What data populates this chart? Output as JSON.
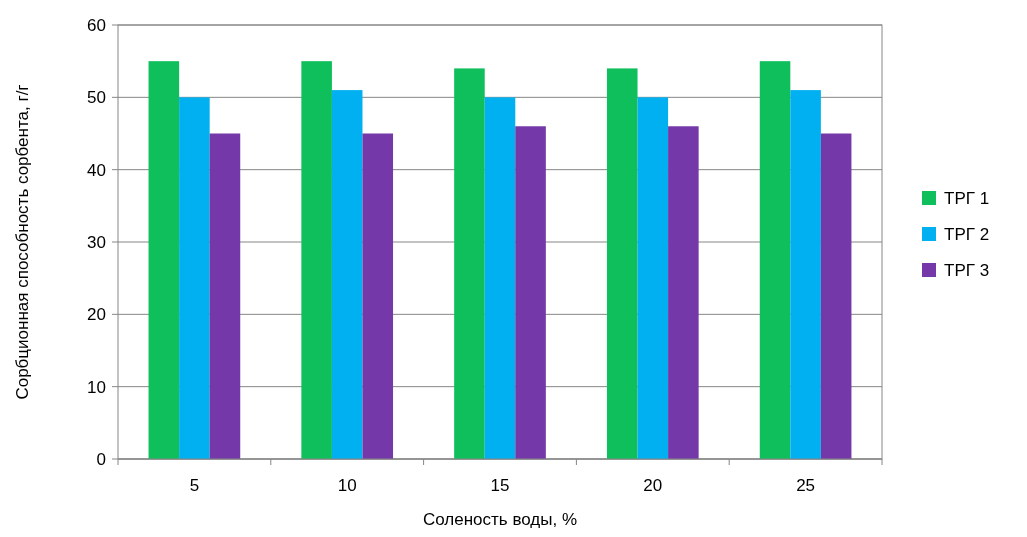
{
  "chart_data": {
    "type": "bar",
    "xlabel": "Соленость воды, %",
    "ylabel": "Сорбционная способность сорбента, г/г",
    "categories": [
      "5",
      "10",
      "15",
      "20",
      "25"
    ],
    "series": [
      {
        "name": "ТРГ 1",
        "color": "#0fbf5b",
        "values": [
          55,
          55,
          54,
          54,
          55
        ]
      },
      {
        "name": "ТРГ 2",
        "color": "#00b0f0",
        "values": [
          50,
          51,
          50,
          50,
          51
        ]
      },
      {
        "name": "ТРГ 3",
        "color": "#7538a8",
        "values": [
          45,
          45,
          46,
          46,
          45
        ]
      }
    ],
    "ylim": [
      0,
      60
    ],
    "yticks": [
      0,
      10,
      20,
      30,
      40,
      50,
      60
    ],
    "grid": "y",
    "legend": "right"
  }
}
